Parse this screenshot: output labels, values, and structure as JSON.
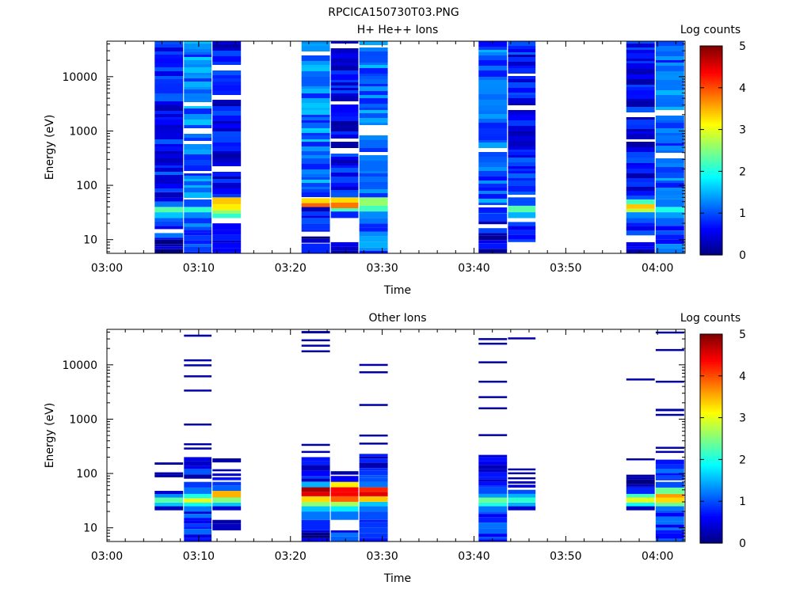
{
  "figure": {
    "title": "RPCICA150730T03.PNG"
  },
  "colors": {
    "colormap": [
      "#00007f",
      "#0000ff",
      "#0080ff",
      "#00ffff",
      "#80ff80",
      "#ffff00",
      "#ff8000",
      "#ff0000",
      "#7f0000"
    ]
  },
  "chart_data": [
    {
      "type": "heatmap",
      "title": "H+ He++ Ions",
      "xlabel": "Time",
      "ylabel": "Energy (eV)",
      "x_ticks": [
        "03:00",
        "03:10",
        "03:20",
        "03:30",
        "03:40",
        "03:50",
        "04:00"
      ],
      "y_ticks": [
        "10",
        "100",
        "1000",
        "10000"
      ],
      "y_scale": "log",
      "xlim": [
        "03:00",
        "04:03"
      ],
      "ylim": [
        5.6,
        45000
      ],
      "colorbar": {
        "label": "Log counts",
        "ticks": [
          "0",
          "1",
          "2",
          "3",
          "4",
          "5"
        ],
        "range": [
          0,
          5
        ]
      },
      "columns": [
        {
          "t_start": "03:05.2",
          "t_end": "03:08.3",
          "bands": [
            [
              5.6,
              10,
              0.2
            ],
            [
              10,
              25,
              0.8
            ],
            [
              25,
              32,
              1.6
            ],
            [
              32,
              40,
              2.3
            ],
            [
              40,
              50,
              1.2
            ],
            [
              50,
              60,
              0.5
            ],
            [
              60,
              75,
              0.3
            ],
            [
              75,
              45000,
              0.7
            ]
          ]
        },
        {
          "t_start": "03:08.4",
          "t_end": "03:11.4",
          "bands": [
            [
              5.6,
              12,
              1.0
            ],
            [
              12,
              25,
              1.1
            ],
            [
              25,
              32,
              1.3
            ],
            [
              32,
              40,
              2.1
            ],
            [
              40,
              55,
              1.0
            ],
            [
              55,
              45000,
              1.2
            ]
          ]
        },
        {
          "t_start": "03:11.5",
          "t_end": "03:14.6",
          "bands": [
            [
              5.6,
              15,
              0.4
            ],
            [
              15,
              20,
              0.6
            ],
            [
              25,
              30,
              2.1
            ],
            [
              30,
              35,
              2.6
            ],
            [
              35,
              45,
              3.2
            ],
            [
              45,
              60,
              3.4
            ],
            [
              60,
              45000,
              0.6
            ]
          ]
        },
        {
          "t_start": "03:21.2",
          "t_end": "03:24.3",
          "bands": [
            [
              5.6,
              8.5,
              0.8
            ],
            [
              8.5,
              14,
              0.3
            ],
            [
              14,
              25,
              0.9
            ],
            [
              25,
              40,
              0.7
            ],
            [
              40,
              47,
              3.9
            ],
            [
              47,
              58,
              3.3
            ],
            [
              58,
              45000,
              1.2
            ]
          ]
        },
        {
          "t_start": "03:24.4",
          "t_end": "03:27.4",
          "bands": [
            [
              5.6,
              9,
              0.6
            ],
            [
              25,
              33,
              0.8
            ],
            [
              33,
              38,
              2.2
            ],
            [
              38,
              48,
              3.8
            ],
            [
              48,
              60,
              3.3
            ],
            [
              60,
              45000,
              0.6
            ]
          ]
        },
        {
          "t_start": "03:27.5",
          "t_end": "03:30.6",
          "bands": [
            [
              5.6,
              14,
              1.1
            ],
            [
              14,
              25,
              1.2
            ],
            [
              25,
              33,
              1.3
            ],
            [
              33,
              42,
              2.2
            ],
            [
              42,
              60,
              2.6
            ],
            [
              60,
              45000,
              1.2
            ]
          ]
        },
        {
          "t_start": "03:40.5",
          "t_end": "03:43.6",
          "bands": [
            [
              5.6,
              12,
              0.5
            ],
            [
              12,
              22,
              0.7
            ],
            [
              22,
              30,
              0.9
            ],
            [
              30,
              45000,
              1.1
            ]
          ]
        },
        {
          "t_start": "03:43.7",
          "t_end": "03:46.7",
          "bands": [
            [
              9,
              15,
              0.9
            ],
            [
              15,
              25,
              0.8
            ],
            [
              25,
              32,
              1.5
            ],
            [
              32,
              42,
              2.3
            ],
            [
              42,
              60,
              1.0
            ],
            [
              60,
              45000,
              0.7
            ]
          ]
        },
        {
          "t_start": "03:56.6",
          "t_end": "03:59.7",
          "bands": [
            [
              5.6,
              9,
              0.3
            ],
            [
              12,
              25,
              0.8
            ],
            [
              25,
              32,
              1.3
            ],
            [
              32,
              37,
              2.8
            ],
            [
              37,
              45,
              3.4
            ],
            [
              45,
              55,
              2.2
            ],
            [
              55,
              45000,
              0.6
            ]
          ]
        },
        {
          "t_start": "03:59.8",
          "t_end": "04:02.9",
          "bands": [
            [
              5.6,
              18,
              1.0
            ],
            [
              18,
              25,
              1.1
            ],
            [
              25,
              32,
              1.4
            ],
            [
              32,
              40,
              2.0
            ],
            [
              40,
              55,
              1.2
            ],
            [
              55,
              45000,
              1.1
            ]
          ]
        }
      ]
    },
    {
      "type": "heatmap",
      "title": "Other Ions",
      "xlabel": "Time",
      "ylabel": "Energy (eV)",
      "x_ticks": [
        "03:00",
        "03:10",
        "03:20",
        "03:30",
        "03:40",
        "03:50",
        "04:00"
      ],
      "y_ticks": [
        "10",
        "100",
        "1000",
        "10000"
      ],
      "y_scale": "log",
      "xlim": [
        "03:00",
        "04:03"
      ],
      "ylim": [
        5.6,
        45000
      ],
      "colorbar": {
        "label": "Log counts",
        "ticks": [
          "0",
          "1",
          "2",
          "3",
          "4",
          "5"
        ],
        "range": [
          0,
          5
        ]
      },
      "columns": [
        {
          "t_start": "03:05.2",
          "t_end": "03:08.3",
          "bands": [
            [
              21,
              25,
              0.3
            ],
            [
              25,
              29,
              1.6
            ],
            [
              29,
              36,
              2.3
            ],
            [
              36,
              42,
              1.3
            ],
            [
              42,
              48,
              0.4
            ],
            [
              85,
              95,
              0.2
            ],
            [
              95,
              105,
              0.2
            ],
            [
              145,
              160,
              0.2
            ]
          ]
        },
        {
          "t_start": "03:08.4",
          "t_end": "03:11.4",
          "bands": [
            [
              5.6,
              20,
              0.8
            ],
            [
              20,
              25,
              1.2
            ],
            [
              25,
              29,
              1.9
            ],
            [
              29,
              35,
              3.0
            ],
            [
              35,
              42,
              2.0
            ],
            [
              42,
              55,
              1.2
            ],
            [
              55,
              70,
              0.9
            ],
            [
              80,
              200,
              0.6
            ],
            [
              280,
              300,
              0.2
            ],
            [
              340,
              360,
              0.2
            ],
            [
              780,
              830,
              0.2
            ],
            [
              3300,
              3500,
              0.2
            ],
            [
              6000,
              6400,
              0.2
            ],
            [
              9600,
              10200,
              0.2
            ],
            [
              12000,
              12600,
              0.2
            ],
            [
              33000,
              36000,
              0.2
            ]
          ]
        },
        {
          "t_start": "03:11.5",
          "t_end": "03:14.6",
          "bands": [
            [
              9,
              12,
              0.3
            ],
            [
              12,
              14,
              0.2
            ],
            [
              21,
              25,
              0.4
            ],
            [
              25,
              29,
              1.6
            ],
            [
              29,
              36,
              2.5
            ],
            [
              36,
              42,
              3.5
            ],
            [
              42,
              48,
              3.5
            ],
            [
              48,
              60,
              1.1
            ],
            [
              60,
              70,
              0.9
            ],
            [
              75,
              85,
              0.7
            ],
            [
              90,
              100,
              0.4
            ],
            [
              110,
              120,
              0.3
            ],
            [
              160,
              190,
              0.2
            ]
          ]
        },
        {
          "t_start": "03:21.2",
          "t_end": "03:24.3",
          "bands": [
            [
              5.6,
              9,
              0.2
            ],
            [
              9,
              14,
              0.8
            ],
            [
              14,
              20,
              1.2
            ],
            [
              20,
              25,
              1.6
            ],
            [
              25,
              30,
              2.6
            ],
            [
              30,
              38,
              3.3
            ],
            [
              38,
              46,
              4.5
            ],
            [
              46,
              56,
              4.8
            ],
            [
              56,
              70,
              1.5
            ],
            [
              70,
              200,
              0.7
            ],
            [
              240,
              260,
              0.2
            ],
            [
              330,
              350,
              0.2
            ],
            [
              17000,
              18500,
              0.2
            ],
            [
              22000,
              23500,
              0.2
            ],
            [
              28000,
              29500,
              0.2
            ],
            [
              38000,
              42000,
              0.2
            ]
          ]
        },
        {
          "t_start": "03:24.4",
          "t_end": "03:27.4",
          "bands": [
            [
              5.6,
              9,
              0.8
            ],
            [
              14,
              20,
              1.2
            ],
            [
              20,
              25,
              1.8
            ],
            [
              25,
              30,
              2.7
            ],
            [
              30,
              38,
              3.9
            ],
            [
              38,
              46,
              4.4
            ],
            [
              46,
              56,
              4.4
            ],
            [
              56,
              70,
              3.2
            ],
            [
              70,
              90,
              0.6
            ],
            [
              95,
              110,
              0.2
            ]
          ]
        },
        {
          "t_start": "03:27.5",
          "t_end": "03:30.6",
          "bands": [
            [
              5.6,
              14,
              0.8
            ],
            [
              14,
              20,
              1.0
            ],
            [
              20,
              25,
              1.2
            ],
            [
              25,
              30,
              1.6
            ],
            [
              30,
              38,
              3.4
            ],
            [
              38,
              46,
              4.5
            ],
            [
              46,
              56,
              4.2
            ],
            [
              56,
              70,
              1.2
            ],
            [
              70,
              230,
              0.6
            ],
            [
              350,
              370,
              0.2
            ],
            [
              480,
              520,
              0.2
            ],
            [
              1750,
              1900,
              0.2
            ],
            [
              7200,
              7600,
              0.2
            ],
            [
              9800,
              10400,
              0.2
            ]
          ]
        },
        {
          "t_start": "03:40.5",
          "t_end": "03:43.6",
          "bands": [
            [
              5.6,
              20,
              0.8
            ],
            [
              20,
              25,
              1.2
            ],
            [
              25,
              29,
              2.0
            ],
            [
              29,
              36,
              2.4
            ],
            [
              36,
              42,
              1.4
            ],
            [
              42,
              55,
              1.0
            ],
            [
              55,
              220,
              0.6
            ],
            [
              500,
              530,
              0.2
            ],
            [
              1550,
              1650,
              0.2
            ],
            [
              2500,
              2650,
              0.2
            ],
            [
              4800,
              5100,
              0.2
            ],
            [
              11000,
              11600,
              0.2
            ],
            [
              24000,
              25500,
              0.2
            ],
            [
              29000,
              31000,
              0.2
            ]
          ]
        },
        {
          "t_start": "03:43.7",
          "t_end": "03:46.7",
          "bands": [
            [
              21,
              25,
              0.4
            ],
            [
              25,
              29,
              1.5
            ],
            [
              29,
              36,
              2.1
            ],
            [
              36,
              42,
              1.5
            ],
            [
              42,
              50,
              1.0
            ],
            [
              55,
              62,
              0.4
            ],
            [
              65,
              72,
              0.3
            ],
            [
              80,
              85,
              0.2
            ],
            [
              100,
              105,
              0.2
            ],
            [
              118,
              124,
              0.2
            ],
            [
              30000,
              32000,
              0.2
            ]
          ]
        },
        {
          "t_start": "03:56.6",
          "t_end": "03:59.7",
          "bands": [
            [
              21,
              25,
              0.3
            ],
            [
              25,
              29,
              1.9
            ],
            [
              29,
              36,
              3.0
            ],
            [
              36,
              42,
              2.2
            ],
            [
              42,
              55,
              0.8
            ],
            [
              55,
              95,
              0.2
            ],
            [
              175,
              190,
              0.2
            ],
            [
              5200,
              5600,
              0.2
            ]
          ]
        },
        {
          "t_start": "03:59.8",
          "t_end": "04:02.9",
          "bands": [
            [
              5.6,
              21,
              0.8
            ],
            [
              21,
              25,
              1.2
            ],
            [
              25,
              29,
              2.4
            ],
            [
              29,
              36,
              3.3
            ],
            [
              36,
              42,
              3.6
            ],
            [
              42,
              55,
              2.4
            ],
            [
              55,
              70,
              1.0
            ],
            [
              75,
              180,
              0.8
            ],
            [
              240,
              260,
              0.2
            ],
            [
              290,
              310,
              0.2
            ],
            [
              1150,
              1250,
              0.2
            ],
            [
              1400,
              1550,
              0.2
            ],
            [
              4800,
              5100,
              0.2
            ],
            [
              18000,
              19500,
              0.2
            ],
            [
              38000,
              41000,
              0.2
            ]
          ]
        }
      ]
    }
  ]
}
